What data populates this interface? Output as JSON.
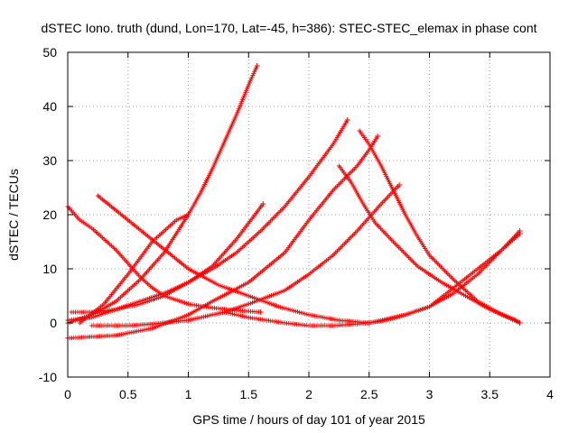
{
  "chart_data": {
    "type": "scatter",
    "title": "dSTEC Iono. truth (dund, Lon=170, Lat=-45, h=386): STEC-STEC_elemax in phase cont",
    "xlabel": "GPS time / hours of day 101 of year 2015",
    "ylabel": "dSTEC  / TECUs",
    "xlim": [
      0,
      4
    ],
    "ylim": [
      -10,
      50
    ],
    "xticks": [
      0,
      0.5,
      1,
      1.5,
      2,
      2.5,
      3,
      3.5,
      4
    ],
    "xtick_labels": [
      "0",
      "0.5",
      "1",
      "1.5",
      "2",
      "2.5",
      "3",
      "3.5",
      "4"
    ],
    "yticks": [
      -10,
      0,
      10,
      20,
      30,
      40,
      50
    ],
    "ytick_labels": [
      "-10",
      "0",
      "10",
      "20",
      "30",
      "40",
      "50"
    ],
    "grid": true,
    "legend": "none",
    "marker": "plus",
    "color": "#ff0000",
    "series": [
      {
        "x": [
          0.0,
          0.2,
          0.4,
          0.6,
          0.8,
          1.0,
          1.1,
          1.2,
          1.3,
          1.4,
          1.5,
          1.57
        ],
        "y": [
          0.0,
          1.5,
          4.0,
          8.0,
          13.0,
          20.0,
          24.0,
          28.5,
          33.5,
          38.5,
          44.0,
          47.5
        ]
      },
      {
        "x": [
          0.0,
          0.1,
          0.2,
          0.3,
          0.4,
          0.5,
          0.6,
          0.7,
          0.8,
          1.0,
          1.2,
          1.4,
          1.6
        ],
        "y": [
          21.5,
          19.0,
          17.5,
          15.5,
          13.5,
          11.0,
          8.5,
          6.5,
          5.0,
          3.5,
          2.8,
          2.3,
          2.0
        ]
      },
      {
        "x": [
          0.03,
          0.2,
          0.4,
          0.6,
          0.8,
          1.0,
          1.2,
          1.4,
          1.62
        ],
        "y": [
          2.0,
          2.0,
          2.5,
          3.5,
          5.0,
          7.5,
          10.5,
          15.5,
          22.0
        ]
      },
      {
        "x": [
          0.0,
          0.2,
          0.4,
          0.6,
          0.8,
          1.0,
          1.2,
          1.4,
          1.6,
          1.8,
          2.0,
          2.2,
          2.32
        ],
        "y": [
          0.5,
          1.0,
          2.5,
          4.0,
          5.5,
          7.5,
          10.0,
          13.0,
          17.0,
          21.5,
          27.0,
          33.0,
          37.5
        ]
      },
      {
        "x": [
          0.1,
          0.3,
          0.5,
          0.7,
          0.9,
          1.0
        ],
        "y": [
          0.0,
          3.5,
          9.0,
          15.0,
          19.0,
          20.0
        ]
      },
      {
        "x": [
          0.25,
          0.5,
          0.75,
          1.0,
          1.25,
          1.5,
          1.75,
          2.0,
          2.25,
          2.5
        ],
        "y": [
          23.5,
          19.0,
          14.5,
          10.0,
          7.0,
          5.0,
          3.0,
          1.5,
          0.5,
          0.0
        ]
      },
      {
        "x": [
          0.0,
          0.4,
          0.7,
          1.0,
          1.2,
          1.5,
          1.8,
          2.0,
          2.2,
          2.4,
          2.5,
          2.57
        ],
        "y": [
          -2.8,
          -2.3,
          -1.0,
          1.5,
          4.0,
          7.5,
          13.0,
          19.0,
          24.5,
          29.0,
          32.0,
          34.5
        ]
      },
      {
        "x": [
          0.2,
          0.5,
          0.7,
          1.0,
          1.3,
          1.5,
          1.8,
          2.0,
          2.2,
          2.4,
          2.6,
          2.75
        ],
        "y": [
          -0.5,
          -0.5,
          -0.2,
          0.5,
          2.0,
          3.5,
          6.0,
          9.0,
          12.5,
          17.0,
          22.0,
          25.5
        ]
      },
      {
        "x": [
          1.3,
          1.5,
          1.8,
          2.0,
          2.2,
          2.4,
          2.6,
          2.8,
          3.0,
          3.2,
          3.4,
          3.6,
          3.75
        ],
        "y": [
          2.0,
          1.0,
          0.0,
          -0.5,
          -0.5,
          -0.2,
          0.3,
          1.5,
          3.0,
          5.5,
          9.0,
          13.5,
          17.0
        ]
      },
      {
        "x": [
          2.42,
          2.5,
          2.6,
          2.7,
          2.8,
          2.9,
          3.0,
          3.2,
          3.4,
          3.6,
          3.75
        ],
        "y": [
          35.5,
          33.0,
          29.0,
          24.5,
          20.0,
          16.0,
          12.5,
          8.0,
          4.0,
          1.5,
          0.0
        ]
      },
      {
        "x": [
          2.25,
          2.35,
          2.45,
          2.55,
          2.7,
          2.9,
          3.1,
          3.3,
          3.5,
          3.7,
          3.75
        ],
        "y": [
          29.0,
          26.0,
          22.0,
          18.5,
          15.0,
          10.5,
          7.5,
          5.0,
          2.5,
          0.7,
          0.0
        ]
      },
      {
        "x": [
          2.5,
          2.8,
          3.0,
          3.2,
          3.4,
          3.6,
          3.75
        ],
        "y": [
          0.0,
          1.5,
          3.0,
          6.5,
          10.0,
          13.5,
          16.5
        ]
      }
    ]
  }
}
